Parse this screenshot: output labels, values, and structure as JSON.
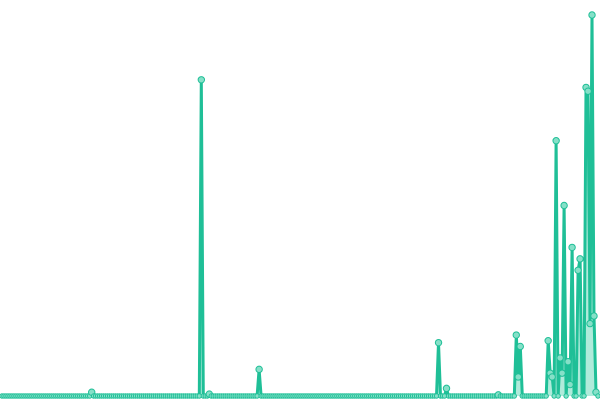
{
  "chart_data": {
    "type": "line",
    "title": "",
    "xlabel": "",
    "ylabel": "",
    "xlim": [
      0,
      299
    ],
    "ylim": [
      0,
      100
    ],
    "grid": false,
    "axes_visible": false,
    "legend": "none",
    "baseline_value": 0,
    "colors": {
      "line": "#1fbf97",
      "marker_fill": "#86e0c8",
      "area_fill": "#8fe3cc"
    },
    "series": [
      {
        "points": [
          [
            45,
            1
          ],
          [
            100,
            83
          ],
          [
            104,
            0.5
          ],
          [
            129,
            7
          ],
          [
            219,
            14
          ],
          [
            223,
            2
          ],
          [
            249,
            0.3
          ],
          [
            258,
            16
          ],
          [
            259,
            5
          ],
          [
            260,
            13
          ],
          [
            274,
            14.5
          ],
          [
            275,
            6
          ],
          [
            276,
            5
          ],
          [
            278,
            67
          ],
          [
            280,
            10
          ],
          [
            281,
            6
          ],
          [
            282,
            50
          ],
          [
            284,
            9
          ],
          [
            285,
            3
          ],
          [
            286,
            39
          ],
          [
            289,
            33
          ],
          [
            290,
            36
          ],
          [
            293,
            81
          ],
          [
            294,
            80
          ],
          [
            295,
            19
          ],
          [
            296,
            100
          ],
          [
            297,
            21
          ],
          [
            298,
            1
          ]
        ]
      }
    ]
  }
}
